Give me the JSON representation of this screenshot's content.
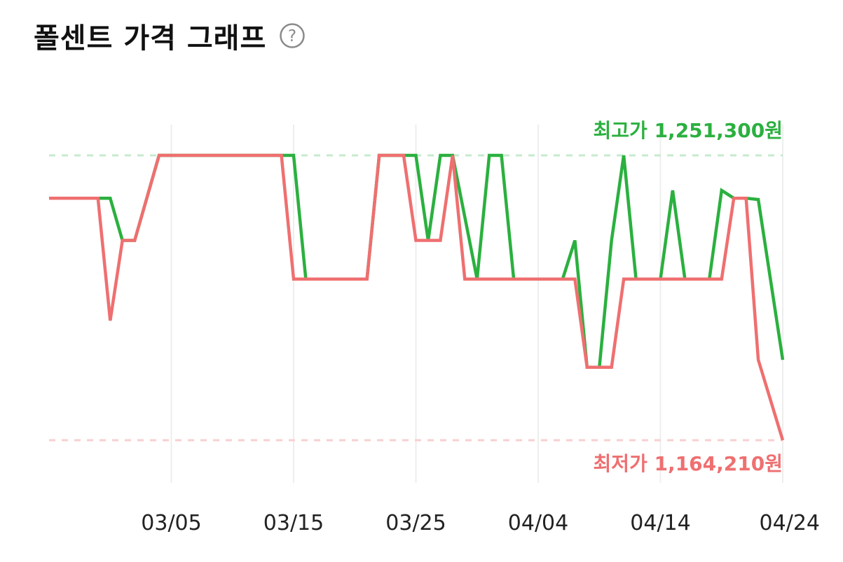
{
  "header": {
    "title": "폴센트 가격 그래프"
  },
  "colors": {
    "high_series": "#2bb03f",
    "low_series": "#ef6f70",
    "grid": "#eeeeee",
    "text": "#222222"
  },
  "chart_data": {
    "type": "line",
    "title": "폴센트 가격 그래프",
    "xlabel": "",
    "ylabel": "",
    "x_tick_labels": [
      "03/05",
      "03/15",
      "03/25",
      "04/04",
      "04/14",
      "04/24"
    ],
    "x_range": [
      "02/24",
      "04/24"
    ],
    "ylim": [
      1164210,
      1251300
    ],
    "grid": "vertical",
    "max_label": "최고가 1,251,300원",
    "min_label": "최저가 1,164,210원",
    "max_value": 1251300,
    "min_value": 1164210,
    "series": [
      {
        "role": "high",
        "points": [
          [
            "02/24",
            1238200
          ],
          [
            "02/28",
            1238200
          ],
          [
            "02/29",
            1238200
          ],
          [
            "03/01",
            1225300
          ],
          [
            "03/02",
            1225300
          ],
          [
            "03/04",
            1251300
          ],
          [
            "03/14",
            1251300
          ],
          [
            "03/15",
            1251300
          ],
          [
            "03/16",
            1213500
          ],
          [
            "03/21",
            1213500
          ],
          [
            "03/22",
            1251300
          ],
          [
            "03/25",
            1251300
          ],
          [
            "03/26",
            1225300
          ],
          [
            "03/27",
            1251300
          ],
          [
            "03/28",
            1251300
          ],
          [
            "03/30",
            1213500
          ],
          [
            "03/31",
            1251300
          ],
          [
            "04/01",
            1251300
          ],
          [
            "04/02",
            1213500
          ],
          [
            "04/06",
            1213500
          ],
          [
            "04/07",
            1225300
          ],
          [
            "04/08",
            1186500
          ],
          [
            "04/09",
            1186500
          ],
          [
            "04/10",
            1225300
          ],
          [
            "04/11",
            1251300
          ],
          [
            "04/12",
            1213500
          ],
          [
            "04/14",
            1213500
          ],
          [
            "04/15",
            1240600
          ],
          [
            "04/16",
            1213500
          ],
          [
            "04/18",
            1213500
          ],
          [
            "04/19",
            1240600
          ],
          [
            "04/20",
            1238200
          ],
          [
            "04/21",
            1238200
          ],
          [
            "04/22",
            1237800
          ],
          [
            "04/24",
            1188800
          ]
        ]
      },
      {
        "role": "low",
        "points": [
          [
            "02/24",
            1238200
          ],
          [
            "02/28",
            1238200
          ],
          [
            "02/29",
            1200800
          ],
          [
            "03/01",
            1225300
          ],
          [
            "03/02",
            1225300
          ],
          [
            "03/04",
            1251300
          ],
          [
            "03/14",
            1251300
          ],
          [
            "03/15",
            1213500
          ],
          [
            "03/21",
            1213500
          ],
          [
            "03/22",
            1251300
          ],
          [
            "03/24",
            1251300
          ],
          [
            "03/25",
            1225300
          ],
          [
            "03/27",
            1225300
          ],
          [
            "03/28",
            1251300
          ],
          [
            "03/29",
            1213500
          ],
          [
            "04/07",
            1213500
          ],
          [
            "04/08",
            1186500
          ],
          [
            "04/10",
            1186500
          ],
          [
            "04/11",
            1213500
          ],
          [
            "04/18",
            1213500
          ],
          [
            "04/19",
            1213500
          ],
          [
            "04/20",
            1238200
          ],
          [
            "04/21",
            1238200
          ],
          [
            "04/22",
            1188800
          ],
          [
            "04/24",
            1164210
          ]
        ]
      }
    ]
  }
}
